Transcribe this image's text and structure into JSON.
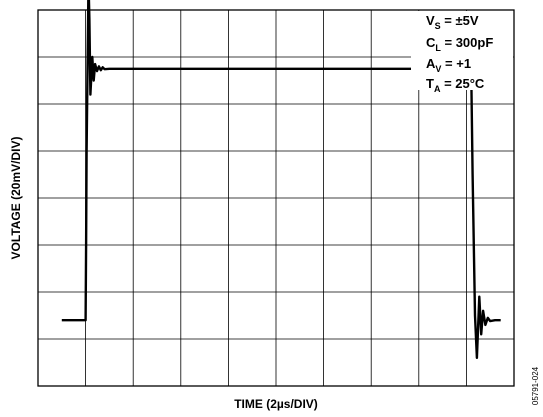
{
  "chart_data": {
    "type": "line",
    "xlabel": "TIME (2µs/DIV)",
    "ylabel": "VOLTAGE (20mV/DIV)",
    "x_divisions": 10,
    "y_divisions": 8,
    "xlim": [
      0,
      10
    ],
    "ylim": [
      0,
      8
    ],
    "grid": true,
    "annotations": [
      {
        "base": "V",
        "sub": "S",
        "rest": " = ±5V"
      },
      {
        "base": "C",
        "sub": "L",
        "rest": " = 300pF"
      },
      {
        "base": "A",
        "sub": "V",
        "rest": " = +1"
      },
      {
        "base": "T",
        "sub": "A",
        "rest": " = 25°C"
      }
    ],
    "series": [
      {
        "x": [
          0.5,
          1.0,
          1.01,
          1.02,
          1.06,
          1.08,
          1.1,
          1.14,
          1.17,
          1.2,
          1.24,
          1.28,
          1.32,
          1.36,
          1.4,
          1.5,
          1.7,
          2.0,
          4.0,
          6.0,
          8.0,
          9.1,
          9.13,
          9.18,
          9.22,
          9.27,
          9.31,
          9.35,
          9.4,
          9.45,
          9.5,
          9.6,
          9.72
        ],
        "y": [
          1.4,
          1.4,
          3.0,
          5.0,
          8.6,
          7.8,
          6.2,
          7.0,
          6.5,
          6.85,
          6.7,
          6.8,
          6.72,
          6.78,
          6.74,
          6.75,
          6.75,
          6.75,
          6.75,
          6.75,
          6.75,
          6.75,
          4.5,
          1.5,
          0.6,
          1.9,
          1.1,
          1.6,
          1.3,
          1.45,
          1.38,
          1.4,
          1.4
        ]
      }
    ],
    "figure_id": "05791-024"
  }
}
